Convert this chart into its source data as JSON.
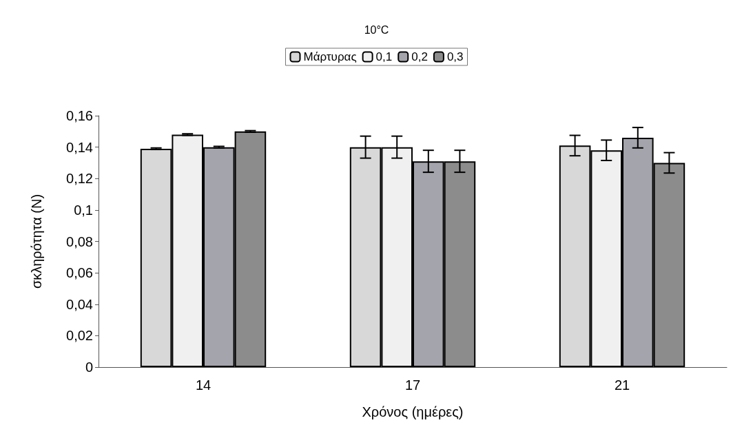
{
  "chart_data": {
    "type": "bar",
    "title": "10°C",
    "xlabel": "Χρόνος (ημέρες)",
    "ylabel": "σκληρότητα (N)",
    "categories": [
      "14",
      "17",
      "21"
    ],
    "series": [
      {
        "name": "Μάρτυρας",
        "color": "#d8d8d8",
        "values": [
          0.139,
          0.14,
          0.141
        ],
        "errors": [
          0.0005,
          0.007,
          0.0065
        ]
      },
      {
        "name": "0,1",
        "color": "#f0f0f0",
        "values": [
          0.148,
          0.14,
          0.138
        ],
        "errors": [
          0.0005,
          0.007,
          0.0065
        ]
      },
      {
        "name": "0,2",
        "color": "#a4a4ac",
        "values": [
          0.14,
          0.131,
          0.146
        ],
        "errors": [
          0.0005,
          0.007,
          0.0065
        ]
      },
      {
        "name": "0,3",
        "color": "#8c8c8c",
        "values": [
          0.15,
          0.131,
          0.13
        ],
        "errors": [
          0.0005,
          0.007,
          0.0065
        ]
      }
    ],
    "ylim": [
      0,
      0.16
    ],
    "yticks": [
      {
        "value": 0,
        "label": "0"
      },
      {
        "value": 0.02,
        "label": "0,02"
      },
      {
        "value": 0.04,
        "label": "0,04"
      },
      {
        "value": 0.06,
        "label": "0,06"
      },
      {
        "value": 0.08,
        "label": "0,08"
      },
      {
        "value": 0.1,
        "label": "0,1"
      },
      {
        "value": 0.12,
        "label": "0,12"
      },
      {
        "value": 0.14,
        "label": "0,14"
      },
      {
        "value": 0.16,
        "label": "0,16"
      }
    ],
    "grid": false,
    "legend": "top"
  }
}
